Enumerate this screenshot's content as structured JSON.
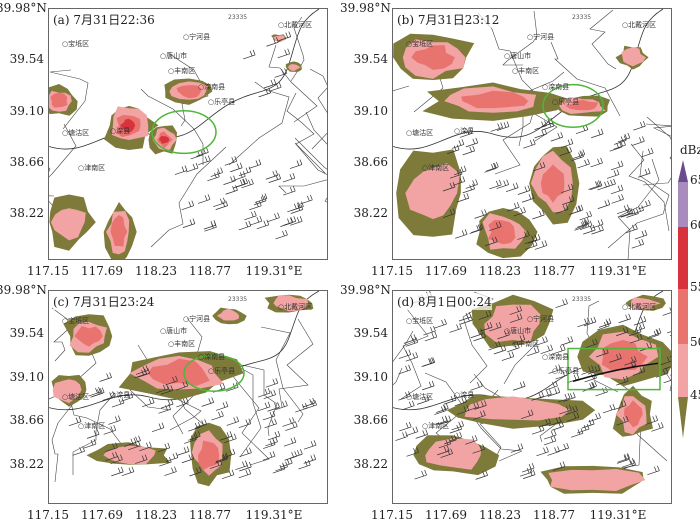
{
  "panels": [
    {
      "id": "a",
      "title": "(a) 7月31日22:36"
    },
    {
      "id": "b",
      "title": "(b) 7月31日23:12"
    },
    {
      "id": "c",
      "title": "(c) 7月31日23:24"
    },
    {
      "id": "d",
      "title": "(d) 8月1日00:24"
    }
  ],
  "axes": {
    "y_ticks": [
      "39.98°N",
      "39.54",
      "39.10",
      "38.66",
      "38.22"
    ],
    "x_ticks": [
      "117.15",
      "117.69",
      "118.23",
      "118.77",
      "119.31°E"
    ]
  },
  "places": [
    "宝坻区",
    "宁河县",
    "丰南区",
    "唐山市",
    "滦南县",
    "乐亭县",
    "北戴河区",
    "滦县",
    "津南区",
    "塘沽区",
    "23335"
  ],
  "colorbar": {
    "unit": "dBz",
    "ticks": [
      "65",
      "60",
      "55",
      "50",
      "45"
    ],
    "colors": [
      "#6b4a8e",
      "#a98bbd",
      "#d8333c",
      "#e8736f",
      "#f2a3a3",
      "#7d7a3a"
    ]
  },
  "colors": {
    "outline": "#4fb63a",
    "terrain_echo": "#7d7a3a"
  }
}
